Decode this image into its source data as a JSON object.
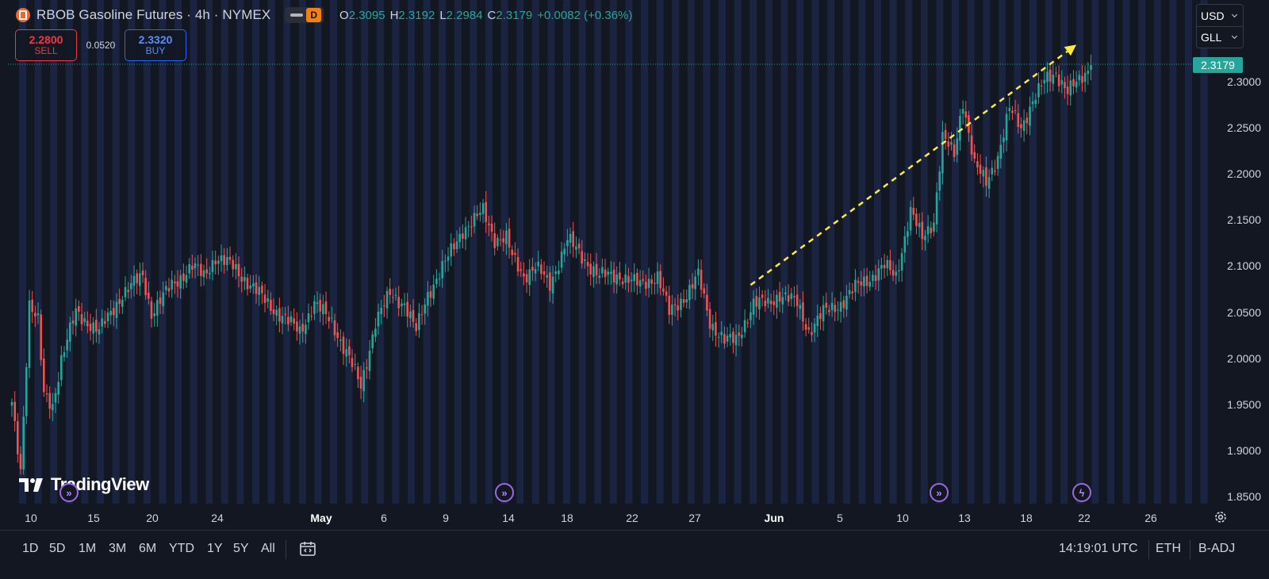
{
  "header": {
    "symbol_title": "RBOB Gasoline Futures · 4h · NYMEX",
    "badge": "D",
    "ohlc": {
      "o_label": "O",
      "o": "2.3095",
      "h_label": "H",
      "h": "2.3192",
      "l_label": "L",
      "l": "2.2984",
      "c_label": "C",
      "c": "2.3179",
      "change": "+0.0082 (+0.36%)"
    }
  },
  "trade": {
    "sell_price": "2.2800",
    "sell_label": "SELL",
    "spread": "0.0520",
    "buy_price": "2.3320",
    "buy_label": "BUY"
  },
  "units": {
    "currency": "USD",
    "unit": "GLL"
  },
  "logo_text": "TradingView",
  "price_axis": {
    "current": "2.3179",
    "labels": [
      "2.3000",
      "2.2500",
      "2.2000",
      "2.1500",
      "2.1000",
      "2.0500",
      "2.0000",
      "1.9500",
      "1.9000",
      "1.8500"
    ]
  },
  "time_axis": {
    "labels": [
      "10",
      "15",
      "20",
      "24",
      "May",
      "6",
      "9",
      "14",
      "18",
      "22",
      "27",
      "Jun",
      "5",
      "10",
      "13",
      "18",
      "22",
      "26"
    ]
  },
  "toolbar": {
    "ranges": [
      "1D",
      "5D",
      "1M",
      "3M",
      "6M",
      "YTD",
      "1Y",
      "5Y",
      "All"
    ],
    "clock": "14:19:01 UTC",
    "session": "ETH",
    "adjust": "B-ADJ"
  },
  "colors": {
    "background": "#131722",
    "session_band": "#1a2441",
    "up": "#26a69a",
    "down": "#ef5350",
    "trend_arrow": "#ffeb3b",
    "event_icon": "#9c6ade"
  },
  "icons": [
    "gasoline-symbol-icon",
    "eye-icon",
    "chevron-down-icon",
    "goto-date-icon",
    "settings-icon",
    "dividend-event-icon",
    "lightning-event-icon"
  ],
  "chart_data": {
    "type": "candlestick",
    "title": "RBOB Gasoline Futures · 4h · NYMEX",
    "ylim": [
      1.84,
      2.35
    ],
    "x_ticks": [
      "10",
      "15",
      "20",
      "24",
      "May",
      "6",
      "9",
      "14",
      "18",
      "22",
      "27",
      "Jun",
      "5",
      "10",
      "13",
      "18",
      "22",
      "26"
    ],
    "anchors": [
      [
        0,
        1.95
      ],
      [
        3,
        1.88
      ],
      [
        6,
        2.06
      ],
      [
        9,
        2.04
      ],
      [
        11,
        1.96
      ],
      [
        14,
        1.95
      ],
      [
        17,
        2.0
      ],
      [
        22,
        2.05
      ],
      [
        30,
        2.03
      ],
      [
        38,
        2.07
      ],
      [
        45,
        2.09
      ],
      [
        48,
        2.05
      ],
      [
        55,
        2.08
      ],
      [
        62,
        2.1
      ],
      [
        66,
        2.09
      ],
      [
        70,
        2.11
      ],
      [
        76,
        2.1
      ],
      [
        82,
        2.08
      ],
      [
        88,
        2.06
      ],
      [
        95,
        2.04
      ],
      [
        99,
        2.03
      ],
      [
        104,
        2.06
      ],
      [
        110,
        2.04
      ],
      [
        116,
        2.0
      ],
      [
        120,
        1.97
      ],
      [
        125,
        2.04
      ],
      [
        130,
        2.07
      ],
      [
        135,
        2.06
      ],
      [
        139,
        2.03
      ],
      [
        143,
        2.07
      ],
      [
        150,
        2.11
      ],
      [
        155,
        2.14
      ],
      [
        159,
        2.15
      ],
      [
        162,
        2.16
      ],
      [
        166,
        2.13
      ],
      [
        170,
        2.13
      ],
      [
        172,
        2.11
      ],
      [
        176,
        2.09
      ],
      [
        180,
        2.1
      ],
      [
        185,
        2.08
      ],
      [
        191,
        2.13
      ],
      [
        196,
        2.11
      ],
      [
        202,
        2.09
      ],
      [
        209,
        2.09
      ],
      [
        216,
        2.08
      ],
      [
        222,
        2.09
      ],
      [
        226,
        2.05
      ],
      [
        232,
        2.07
      ],
      [
        236,
        2.09
      ],
      [
        240,
        2.04
      ],
      [
        245,
        2.02
      ],
      [
        249,
        2.02
      ],
      [
        255,
        2.06
      ],
      [
        260,
        2.06
      ],
      [
        264,
        2.07
      ],
      [
        270,
        2.06
      ],
      [
        274,
        2.03
      ],
      [
        279,
        2.05
      ],
      [
        285,
        2.06
      ],
      [
        291,
        2.08
      ],
      [
        296,
        2.09
      ],
      [
        300,
        2.1
      ],
      [
        304,
        2.09
      ],
      [
        309,
        2.16
      ],
      [
        313,
        2.13
      ],
      [
        317,
        2.15
      ],
      [
        320,
        2.24
      ],
      [
        324,
        2.22
      ],
      [
        327,
        2.28
      ],
      [
        331,
        2.21
      ],
      [
        335,
        2.19
      ],
      [
        339,
        2.22
      ],
      [
        343,
        2.27
      ],
      [
        347,
        2.25
      ],
      [
        351,
        2.28
      ],
      [
        355,
        2.3
      ],
      [
        359,
        2.31
      ],
      [
        363,
        2.29
      ],
      [
        367,
        2.3
      ],
      [
        371,
        2.3179
      ]
    ],
    "trend_line": {
      "from": [
        254,
        2.08
      ],
      "to": [
        366,
        2.34
      ]
    }
  }
}
